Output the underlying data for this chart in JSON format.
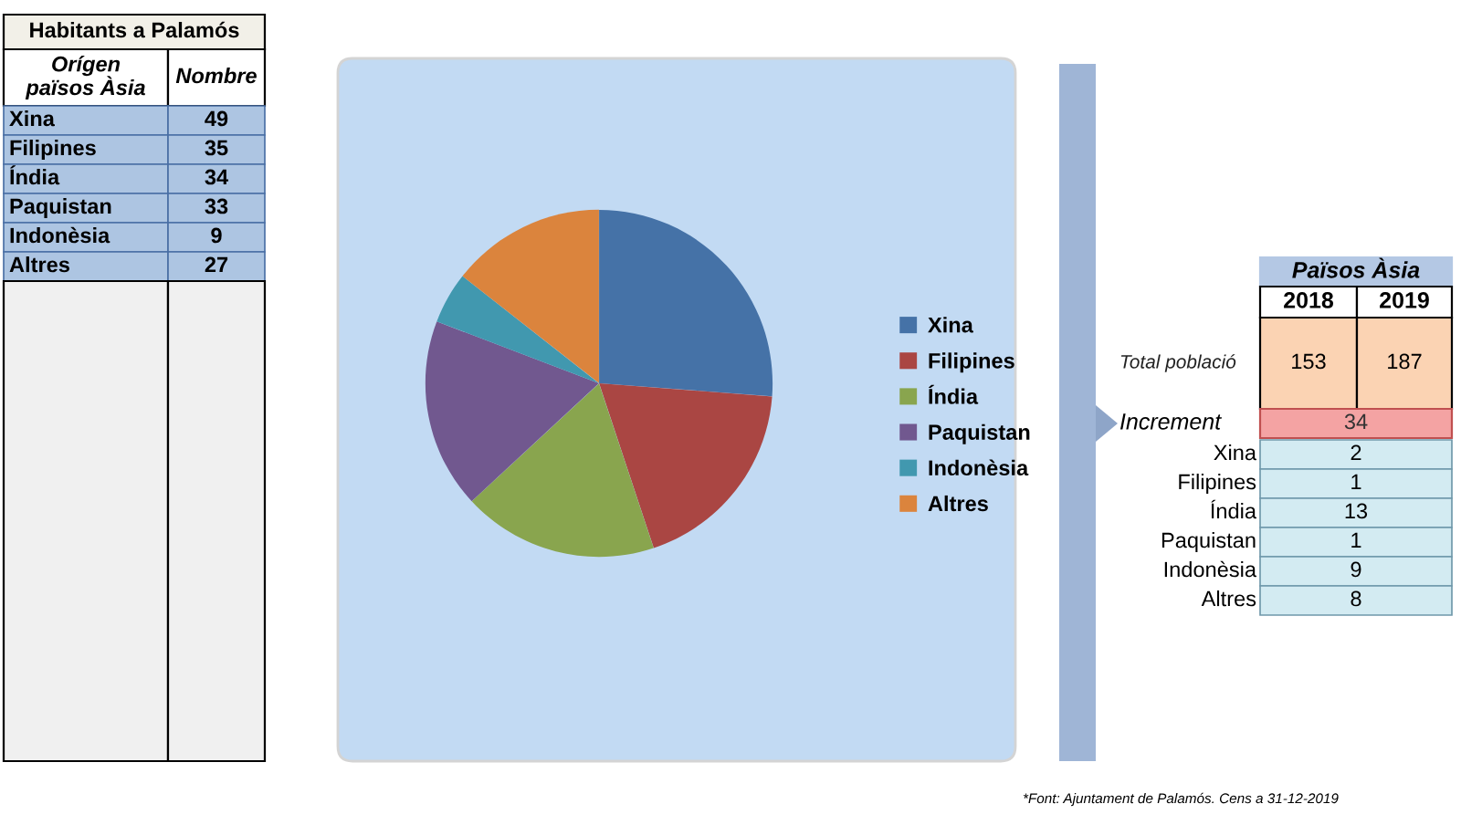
{
  "chart_data": [
    {
      "type": "other",
      "title": "Habitants a Palamós",
      "categories": [
        "Xina",
        "Filipines",
        "Índia",
        "Paquistan",
        "Indonèsia",
        "Altres"
      ],
      "values": [
        49,
        35,
        34,
        33,
        9,
        27
      ],
      "data_labels": true,
      "annotations": [
        "Orígen països Àsia",
        "Nombre"
      ]
    },
    {
      "type": "pie",
      "categories": [
        "Xina",
        "Filipines",
        "Índia",
        "Paquistan",
        "Indonèsia",
        "Altres"
      ],
      "values": [
        26.2,
        18.7,
        18.2,
        17.7,
        4.8,
        14.4
      ],
      "colors": [
        "#4572a7",
        "#aa4643",
        "#89a54e",
        "#71588f",
        "#4198af",
        "#db843d"
      ],
      "legend": "right"
    },
    {
      "type": "other",
      "title": "Països Àsia",
      "categories": [
        "Xina",
        "Filipines",
        "Índia",
        "Paquistan",
        "Indonèsia",
        "Altres"
      ],
      "values": [
        2,
        1,
        13,
        1,
        9,
        8
      ],
      "data_labels": true,
      "annotations": [
        "2018",
        "2019",
        "Total població",
        "153",
        "187",
        "Increment",
        "34",
        "*Font: Ajuntament de Palamós. Cens a 31-12-2019"
      ]
    }
  ]
}
